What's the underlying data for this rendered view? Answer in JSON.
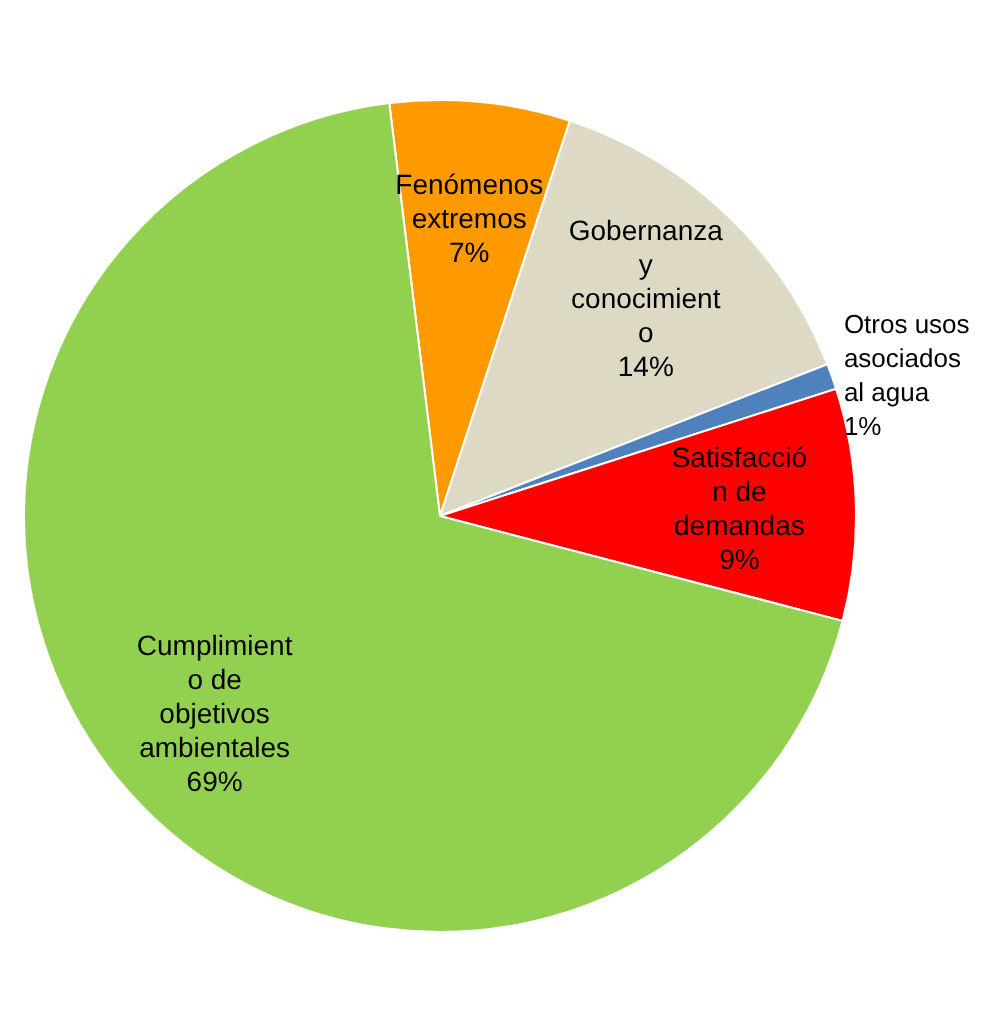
{
  "chart_data": {
    "type": "pie",
    "categories": [
      "Fenómenos extremos",
      "Gobernanza y conocimiento",
      "Otros usos asociados al agua",
      "Satisfacción de demandas",
      "Cumplimiento de objetivos ambientales"
    ],
    "values": [
      7,
      14,
      1,
      9,
      69
    ],
    "value_labels": [
      "7%",
      "14%",
      "1%",
      "9%",
      "69%"
    ],
    "colors": [
      "#ff9900",
      "#ddd9c4",
      "#4f81bd",
      "#ff0000",
      "#92d050"
    ],
    "legend": false
  }
}
